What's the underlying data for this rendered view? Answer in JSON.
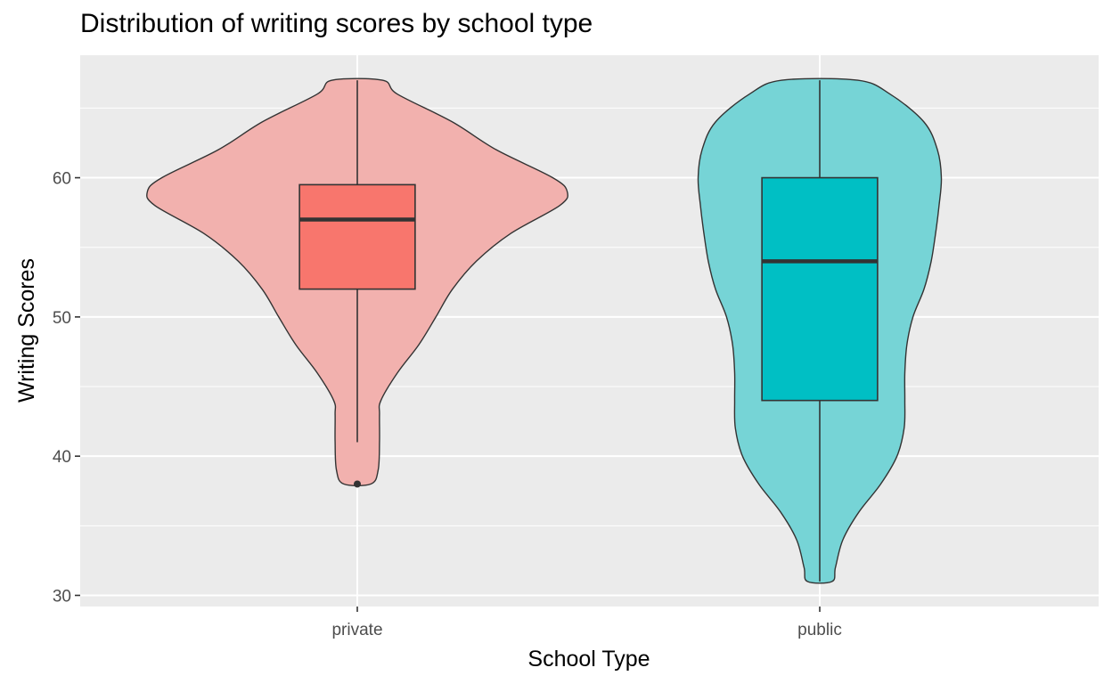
{
  "chart_data": {
    "type": "violin",
    "title": "Distribution of writing scores by school type",
    "xlabel": "School Type",
    "ylabel": "Writing Scores",
    "categories": [
      "private",
      "public"
    ],
    "ylim": [
      29.2,
      68.8
    ],
    "yticks": [
      30,
      40,
      50,
      60
    ],
    "yticks_labels": [
      "30",
      "40",
      "50",
      "60"
    ],
    "grid": true,
    "legend": "none",
    "colors": {
      "private_violin": "#F2B1AE",
      "private_box": "#F8766D",
      "public_violin": "#76D4D6",
      "public_box": "#00BFC4",
      "panel_background": "#EBEBEB",
      "outline": "#333333"
    },
    "series": [
      {
        "category": "private",
        "violin_range": [
          38,
          67
        ],
        "density_profile": [
          {
            "y": 38,
            "half_width": 0.059
          },
          {
            "y": 39,
            "half_width": 0.09
          },
          {
            "y": 41,
            "half_width": 0.096
          },
          {
            "y": 43,
            "half_width": 0.096
          },
          {
            "y": 44,
            "half_width": 0.102
          },
          {
            "y": 46,
            "half_width": 0.174
          },
          {
            "y": 48,
            "half_width": 0.266
          },
          {
            "y": 50,
            "half_width": 0.34
          },
          {
            "y": 52,
            "half_width": 0.412
          },
          {
            "y": 54,
            "half_width": 0.515
          },
          {
            "y": 56,
            "half_width": 0.664
          },
          {
            "y": 58,
            "half_width": 0.875
          },
          {
            "y": 59,
            "half_width": 0.908
          },
          {
            "y": 60,
            "half_width": 0.846
          },
          {
            "y": 62,
            "half_width": 0.602
          },
          {
            "y": 64,
            "half_width": 0.412
          },
          {
            "y": 66,
            "half_width": 0.174
          },
          {
            "y": 67,
            "half_width": 0.109
          }
        ],
        "box": {
          "lower_whisker": 41,
          "q1": 52,
          "median": 57,
          "q3": 59.5,
          "upper_whisker": 67
        },
        "outliers": [
          38
        ]
      },
      {
        "category": "public",
        "violin_range": [
          31,
          67
        ],
        "density_profile": [
          {
            "y": 31,
            "half_width": 0.053
          },
          {
            "y": 32,
            "half_width": 0.068
          },
          {
            "y": 34,
            "half_width": 0.1
          },
          {
            "y": 36,
            "half_width": 0.17
          },
          {
            "y": 38,
            "half_width": 0.264
          },
          {
            "y": 40,
            "half_width": 0.334
          },
          {
            "y": 42,
            "half_width": 0.365
          },
          {
            "y": 44,
            "half_width": 0.368
          },
          {
            "y": 46,
            "half_width": 0.368
          },
          {
            "y": 48,
            "half_width": 0.377
          },
          {
            "y": 50,
            "half_width": 0.403
          },
          {
            "y": 52,
            "half_width": 0.451
          },
          {
            "y": 54,
            "half_width": 0.482
          },
          {
            "y": 56,
            "half_width": 0.501
          },
          {
            "y": 58,
            "half_width": 0.516
          },
          {
            "y": 60,
            "half_width": 0.526
          },
          {
            "y": 62,
            "half_width": 0.509
          },
          {
            "y": 64,
            "half_width": 0.451
          },
          {
            "y": 66,
            "half_width": 0.305
          },
          {
            "y": 67,
            "half_width": 0.164
          }
        ],
        "box": {
          "lower_whisker": 31,
          "q1": 44,
          "median": 54,
          "q3": 60,
          "upper_whisker": 67
        },
        "outliers": []
      }
    ]
  }
}
